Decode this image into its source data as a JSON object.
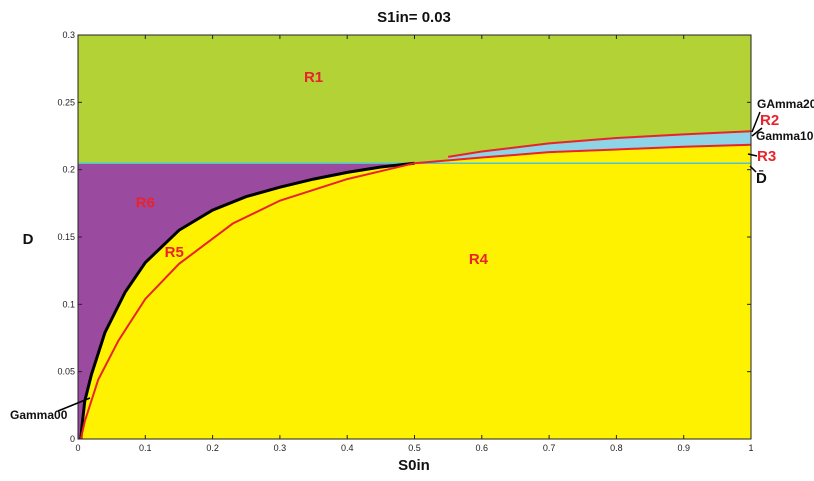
{
  "chart_data": {
    "type": "area",
    "title": "S1in= 0.03",
    "xlabel": "S0in",
    "ylabel": "D",
    "xlim": [
      0,
      1
    ],
    "ylim": [
      0,
      0.3
    ],
    "xticks": [
      0,
      0.1,
      0.2,
      0.3,
      0.4,
      0.5,
      0.6,
      0.7,
      0.8,
      0.9,
      1
    ],
    "yticks": [
      0,
      0.05,
      0.1,
      0.15,
      0.2,
      0.25,
      0.3
    ],
    "xtick_labels": [
      "0",
      "0.1",
      "0.2",
      "0.3",
      "0.4",
      "0.5",
      "0.6",
      "0.7",
      "0.8",
      "0.9",
      "1"
    ],
    "ytick_labels": [
      "0",
      "0.05",
      "0.1",
      "0.15",
      "0.2",
      "0.25",
      "0.3"
    ],
    "dbar": 0.2048,
    "colors": {
      "R1": "#b2d235",
      "R2_R3": "#8fd3e6",
      "R4": "#fff200",
      "R6": "#9b4b9f",
      "gamma00": "#000000",
      "gamma10": "#e8232b",
      "gamma20": "#e8232b",
      "dbar_line": "#4fc3d9"
    },
    "series": [
      {
        "name": "Gamma00",
        "x": [
          0.0042,
          0.006,
          0.01,
          0.02,
          0.04,
          0.07,
          0.1,
          0.15,
          0.2,
          0.25,
          0.3,
          0.35,
          0.4,
          0.45,
          0.5
        ],
        "y": [
          0,
          0.01,
          0.028,
          0.048,
          0.079,
          0.109,
          0.131,
          0.155,
          0.17,
          0.18,
          0.187,
          0.193,
          0.198,
          0.202,
          0.2048
        ]
      },
      {
        "name": "Gamma10",
        "x": [
          0.0042,
          0.01,
          0.03,
          0.06,
          0.1,
          0.15,
          0.23,
          0.3,
          0.4,
          0.5,
          0.6,
          0.7,
          0.8,
          0.9,
          1.0
        ],
        "y": [
          0,
          0.013,
          0.044,
          0.073,
          0.104,
          0.13,
          0.16,
          0.177,
          0.193,
          0.2048,
          0.209,
          0.213,
          0.215,
          0.217,
          0.2185
        ]
      },
      {
        "name": "GAmma20",
        "x": [
          0.55,
          0.6,
          0.7,
          0.8,
          0.9,
          1.0
        ],
        "y": [
          0.2095,
          0.2135,
          0.2195,
          0.2235,
          0.2262,
          0.2285
        ]
      }
    ],
    "regions": [
      {
        "label": "R1",
        "x": 0.35,
        "y": 0.265
      },
      {
        "label": "R6",
        "x": 0.1,
        "y": 0.172
      },
      {
        "label": "R5",
        "x": 0.143,
        "y": 0.135
      },
      {
        "label": "R4",
        "x": 0.595,
        "y": 0.13
      }
    ],
    "annotations": [
      {
        "label": "Gamma00"
      },
      {
        "label": "GAmma20"
      },
      {
        "label": "R2"
      },
      {
        "label": "Gamma10"
      },
      {
        "label": "R3"
      },
      {
        "label": "D̄"
      }
    ]
  }
}
